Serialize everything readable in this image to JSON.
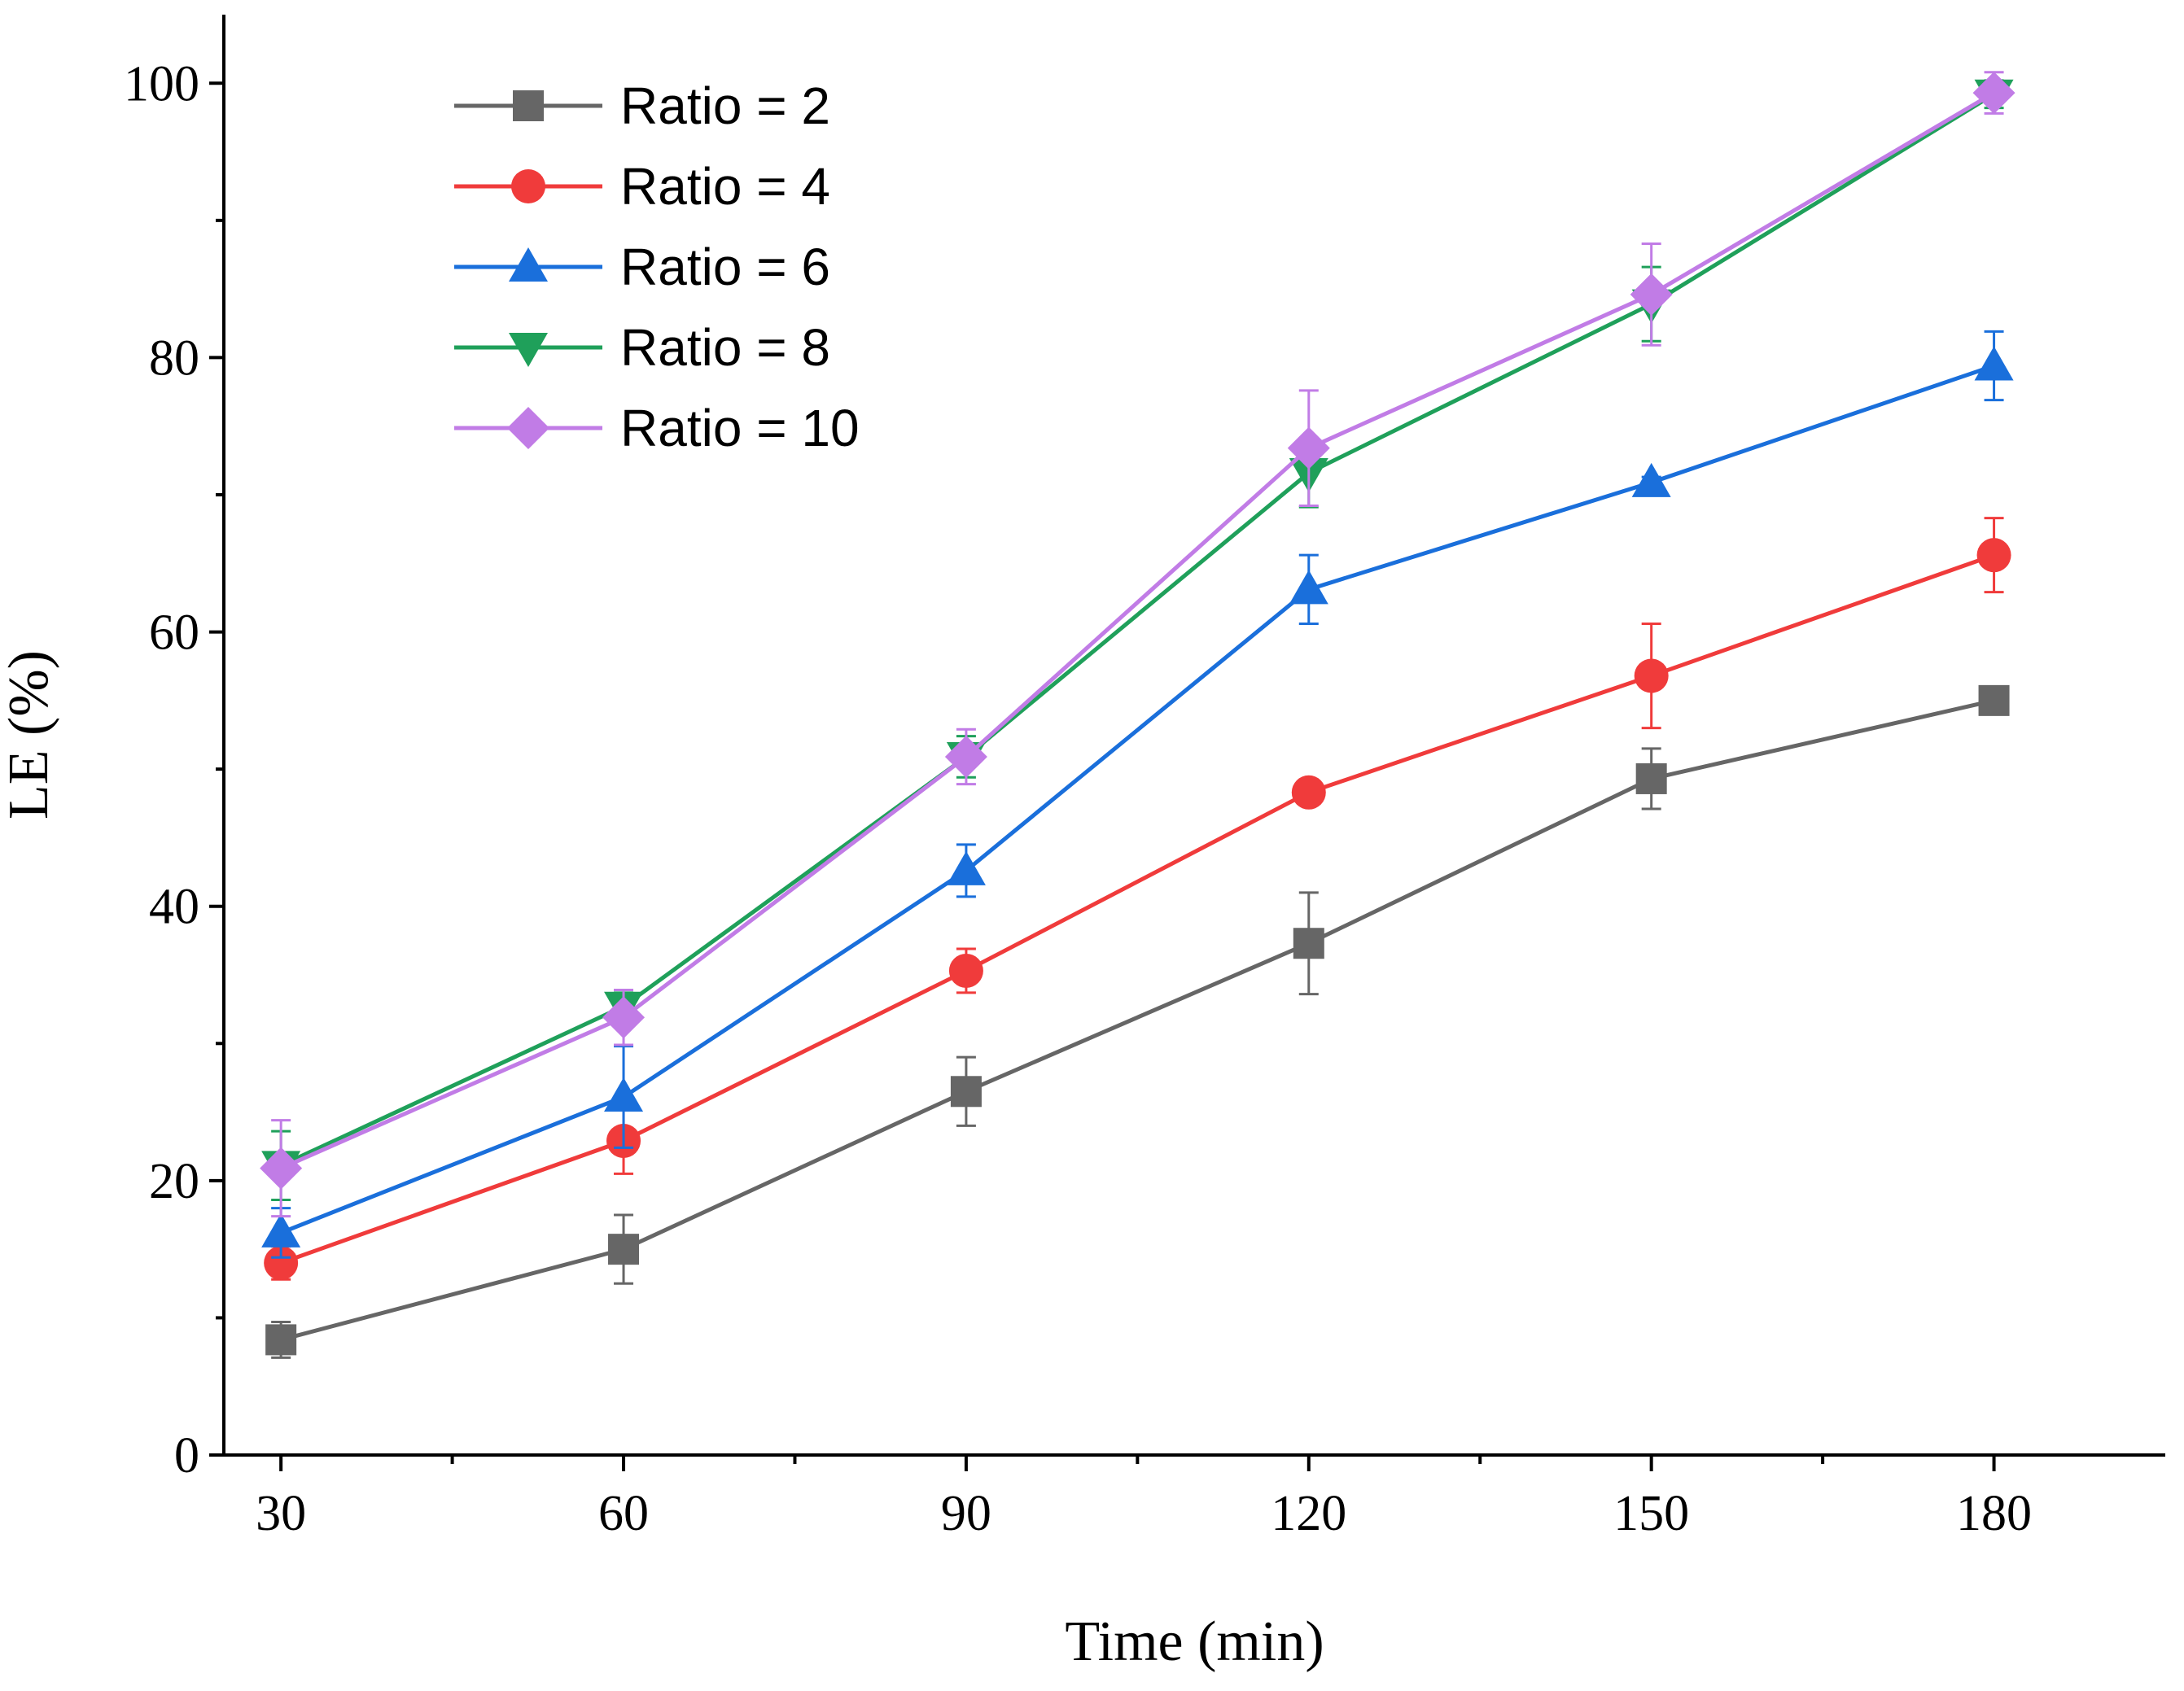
{
  "chart_data": {
    "type": "line",
    "title": "",
    "xlabel": "Time (min)",
    "ylabel": "LE (%)",
    "x": [
      30,
      60,
      90,
      120,
      150,
      180
    ],
    "xlim": [
      25,
      195
    ],
    "ylim": [
      0,
      105
    ],
    "xticks": [
      30,
      60,
      90,
      120,
      150,
      180
    ],
    "yticks": [
      0,
      20,
      40,
      60,
      80,
      100
    ],
    "grid": false,
    "legend_position": "top-left",
    "series": [
      {
        "name": "Ratio = 2",
        "color": "#666666",
        "marker": "square",
        "values": [
          8.4,
          15.0,
          26.5,
          37.3,
          49.3,
          55.0
        ],
        "errors": [
          1.3,
          2.5,
          2.5,
          3.7,
          2.2,
          0.5
        ]
      },
      {
        "name": "Ratio = 4",
        "color": "#F03B3B",
        "marker": "circle",
        "values": [
          14.0,
          22.9,
          35.3,
          48.3,
          56.8,
          65.6
        ],
        "errors": [
          1.2,
          2.4,
          1.6,
          0.6,
          3.8,
          2.7
        ]
      },
      {
        "name": "Ratio = 6",
        "color": "#1A6FDB",
        "marker": "triangle-up",
        "values": [
          16.2,
          26.1,
          42.6,
          63.1,
          70.9,
          79.4
        ],
        "errors": [
          1.8,
          3.7,
          1.9,
          2.5,
          0.4,
          2.5
        ]
      },
      {
        "name": "Ratio = 8",
        "color": "#1FA05A",
        "marker": "triangle-down",
        "values": [
          21.1,
          32.7,
          50.9,
          71.6,
          83.9,
          99.2
        ],
        "errors": [
          2.5,
          1.0,
          1.5,
          2.5,
          2.7,
          1.0
        ]
      },
      {
        "name": "Ratio = 10",
        "color": "#C17CE6",
        "marker": "diamond",
        "values": [
          20.9,
          31.9,
          50.9,
          73.4,
          84.6,
          99.3
        ],
        "errors": [
          3.5,
          2.0,
          2.0,
          4.2,
          3.7,
          1.5
        ]
      }
    ]
  }
}
